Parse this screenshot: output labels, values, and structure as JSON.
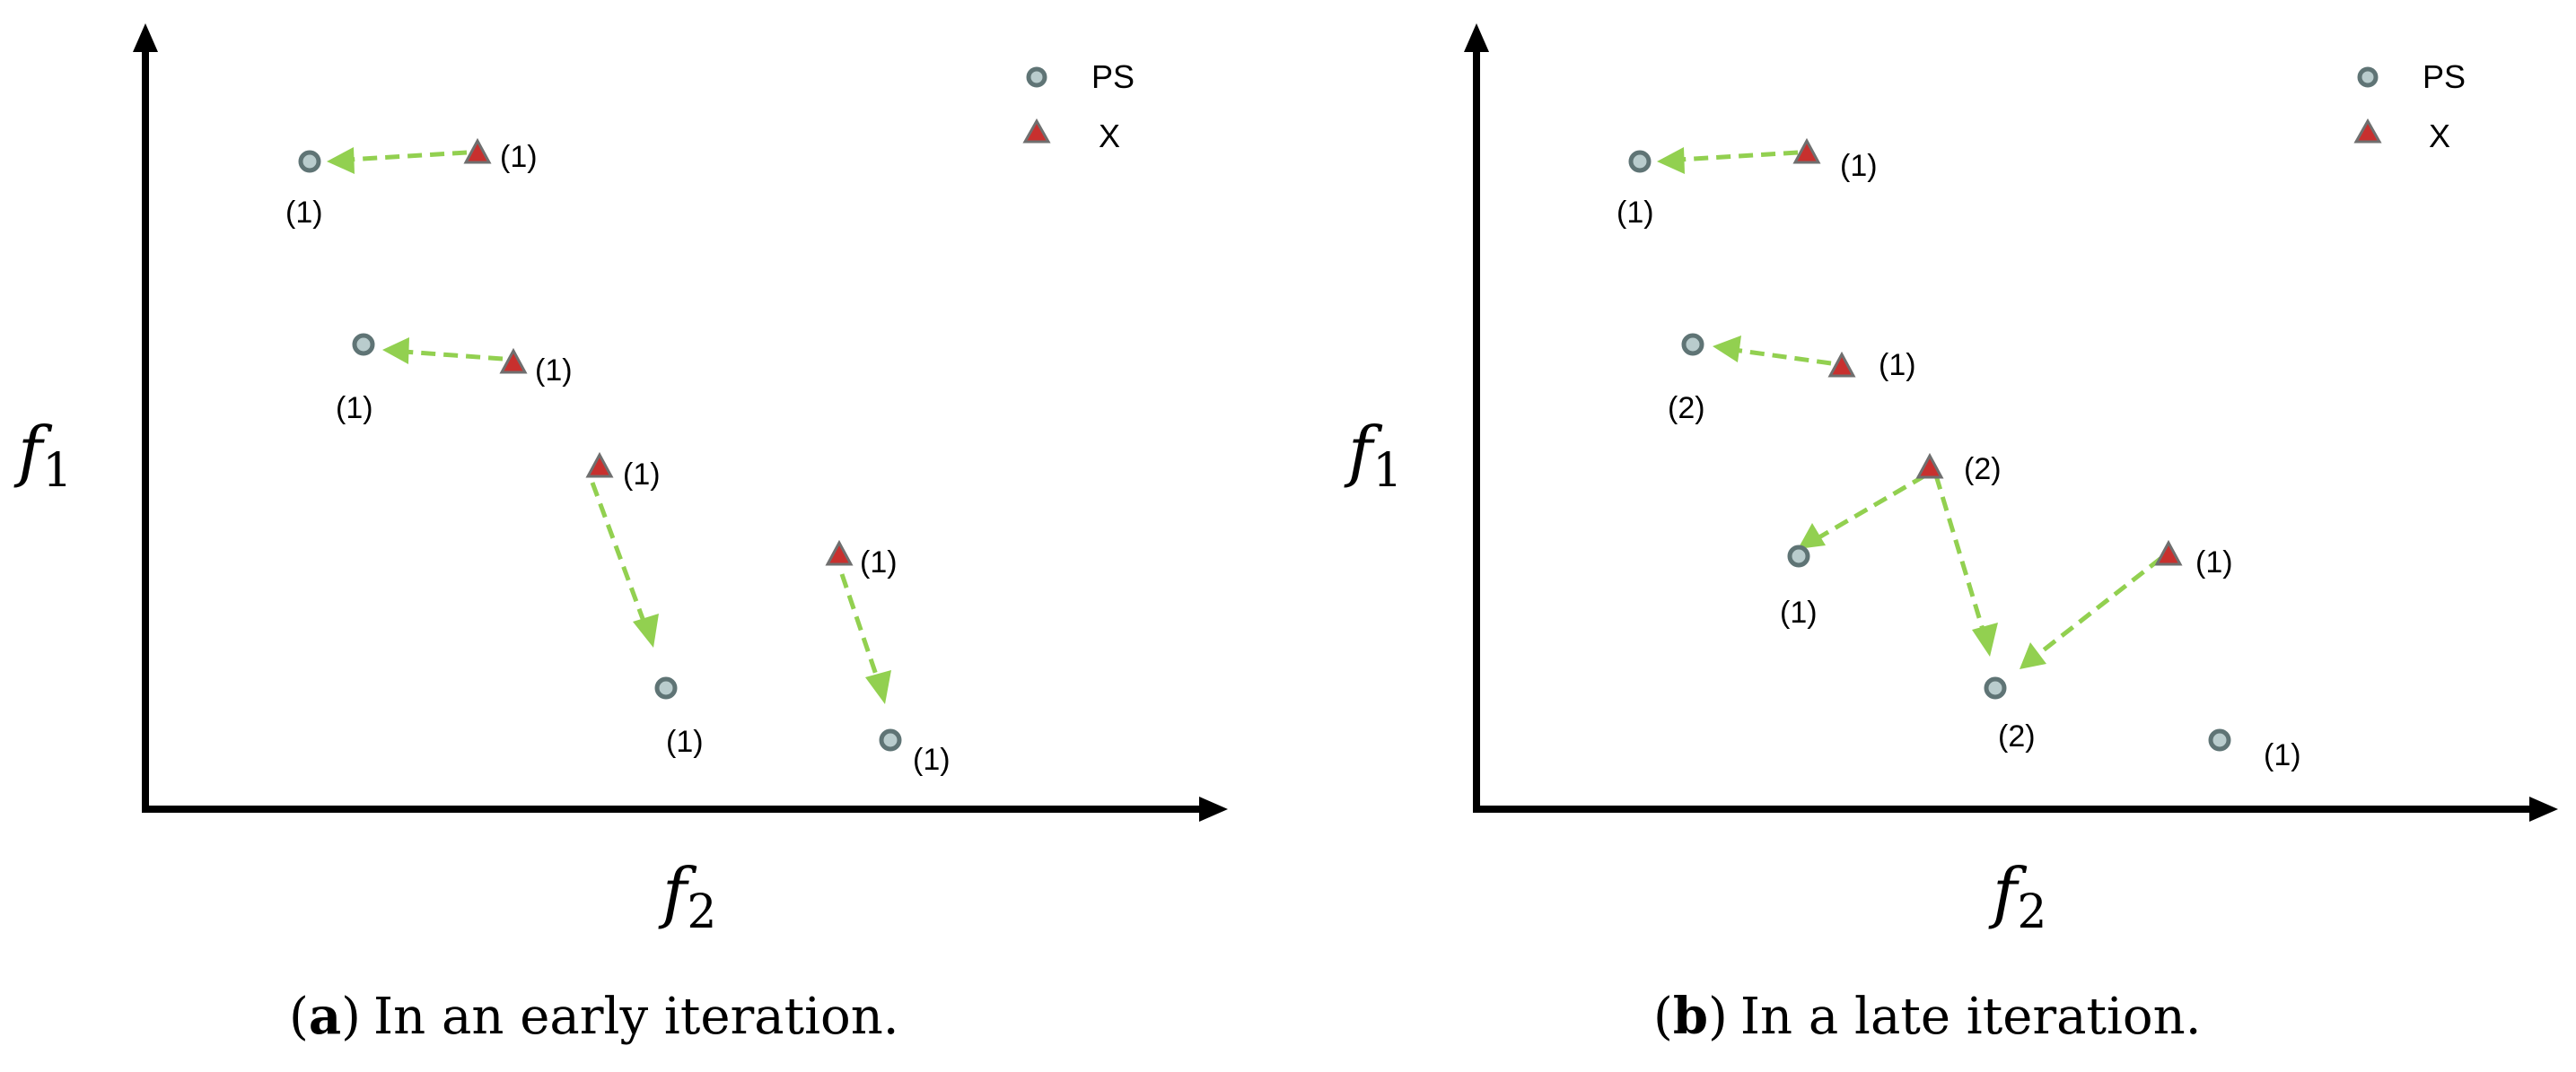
{
  "legend": {
    "ps_label": "PS",
    "x_label": "X"
  },
  "axes": {
    "x_var": "f",
    "x_sub": "2",
    "y_var": "f",
    "y_sub": "1"
  },
  "colors": {
    "ps_fill": "#b9cccd",
    "ps_stroke": "#5f7475",
    "x_fill": "#c8302e",
    "x_stroke": "#6f6f6f",
    "arrow": "#92d050",
    "axis": "#000000"
  },
  "panels": [
    {
      "caption_key": "a",
      "caption_text": "In an early iteration.",
      "ps_points": [
        {
          "label": "(1)"
        },
        {
          "label": "(1)"
        },
        {
          "label": "(1)"
        },
        {
          "label": "(1)"
        }
      ],
      "x_points": [
        {
          "label": "(1)"
        },
        {
          "label": "(1)"
        },
        {
          "label": "(1)"
        },
        {
          "label": "(1)"
        }
      ]
    },
    {
      "caption_key": "b",
      "caption_text": "In a late iteration.",
      "ps_points": [
        {
          "label": "(1)"
        },
        {
          "label": "(2)"
        },
        {
          "label": "(1)"
        },
        {
          "label": "(2)"
        },
        {
          "label": "(1)"
        }
      ],
      "x_points": [
        {
          "label": "(1)"
        },
        {
          "label": "(1)"
        },
        {
          "label": "(2)"
        },
        {
          "label": "(1)"
        }
      ]
    }
  ]
}
